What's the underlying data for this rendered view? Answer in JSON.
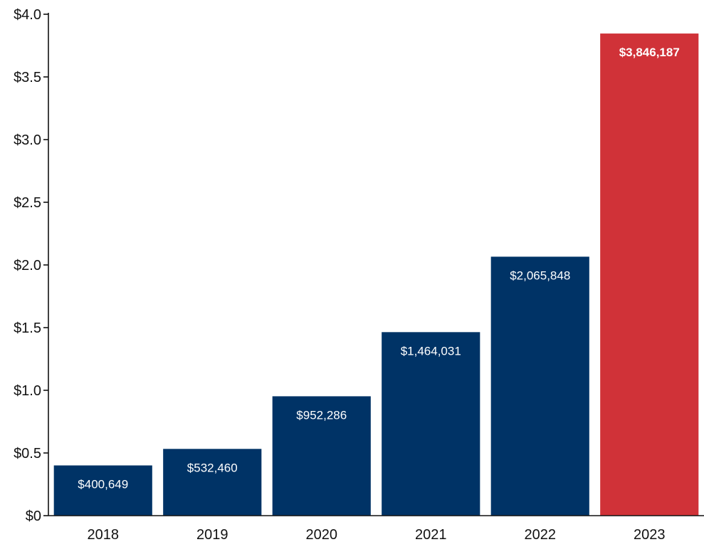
{
  "chart_data": {
    "type": "bar",
    "categories": [
      "2018",
      "2019",
      "2020",
      "2021",
      "2022",
      "2023"
    ],
    "values": [
      400649,
      532460,
      952286,
      1464031,
      2065848,
      3846187
    ],
    "data_labels": [
      "$400,649",
      "$532,460",
      "$952,286",
      "$1,464,031",
      "$2,065,848",
      "$3,846,187"
    ],
    "highlight_index": 5,
    "ylim": [
      0,
      4000000
    ],
    "yticks": [
      0,
      500000,
      1000000,
      1500000,
      2000000,
      2500000,
      3000000,
      3500000,
      4000000
    ],
    "ytick_labels": [
      "$0",
      "$0.5",
      "$1.0",
      "$1.5",
      "$2.0",
      "$2.5",
      "$3.0",
      "$3.5",
      "$4.0"
    ],
    "title": "",
    "xlabel": "",
    "ylabel": "",
    "grid": false,
    "colors": {
      "bar": "#003366",
      "highlight": "#d03238",
      "label": "#ffffff",
      "axis": "#111111"
    }
  }
}
